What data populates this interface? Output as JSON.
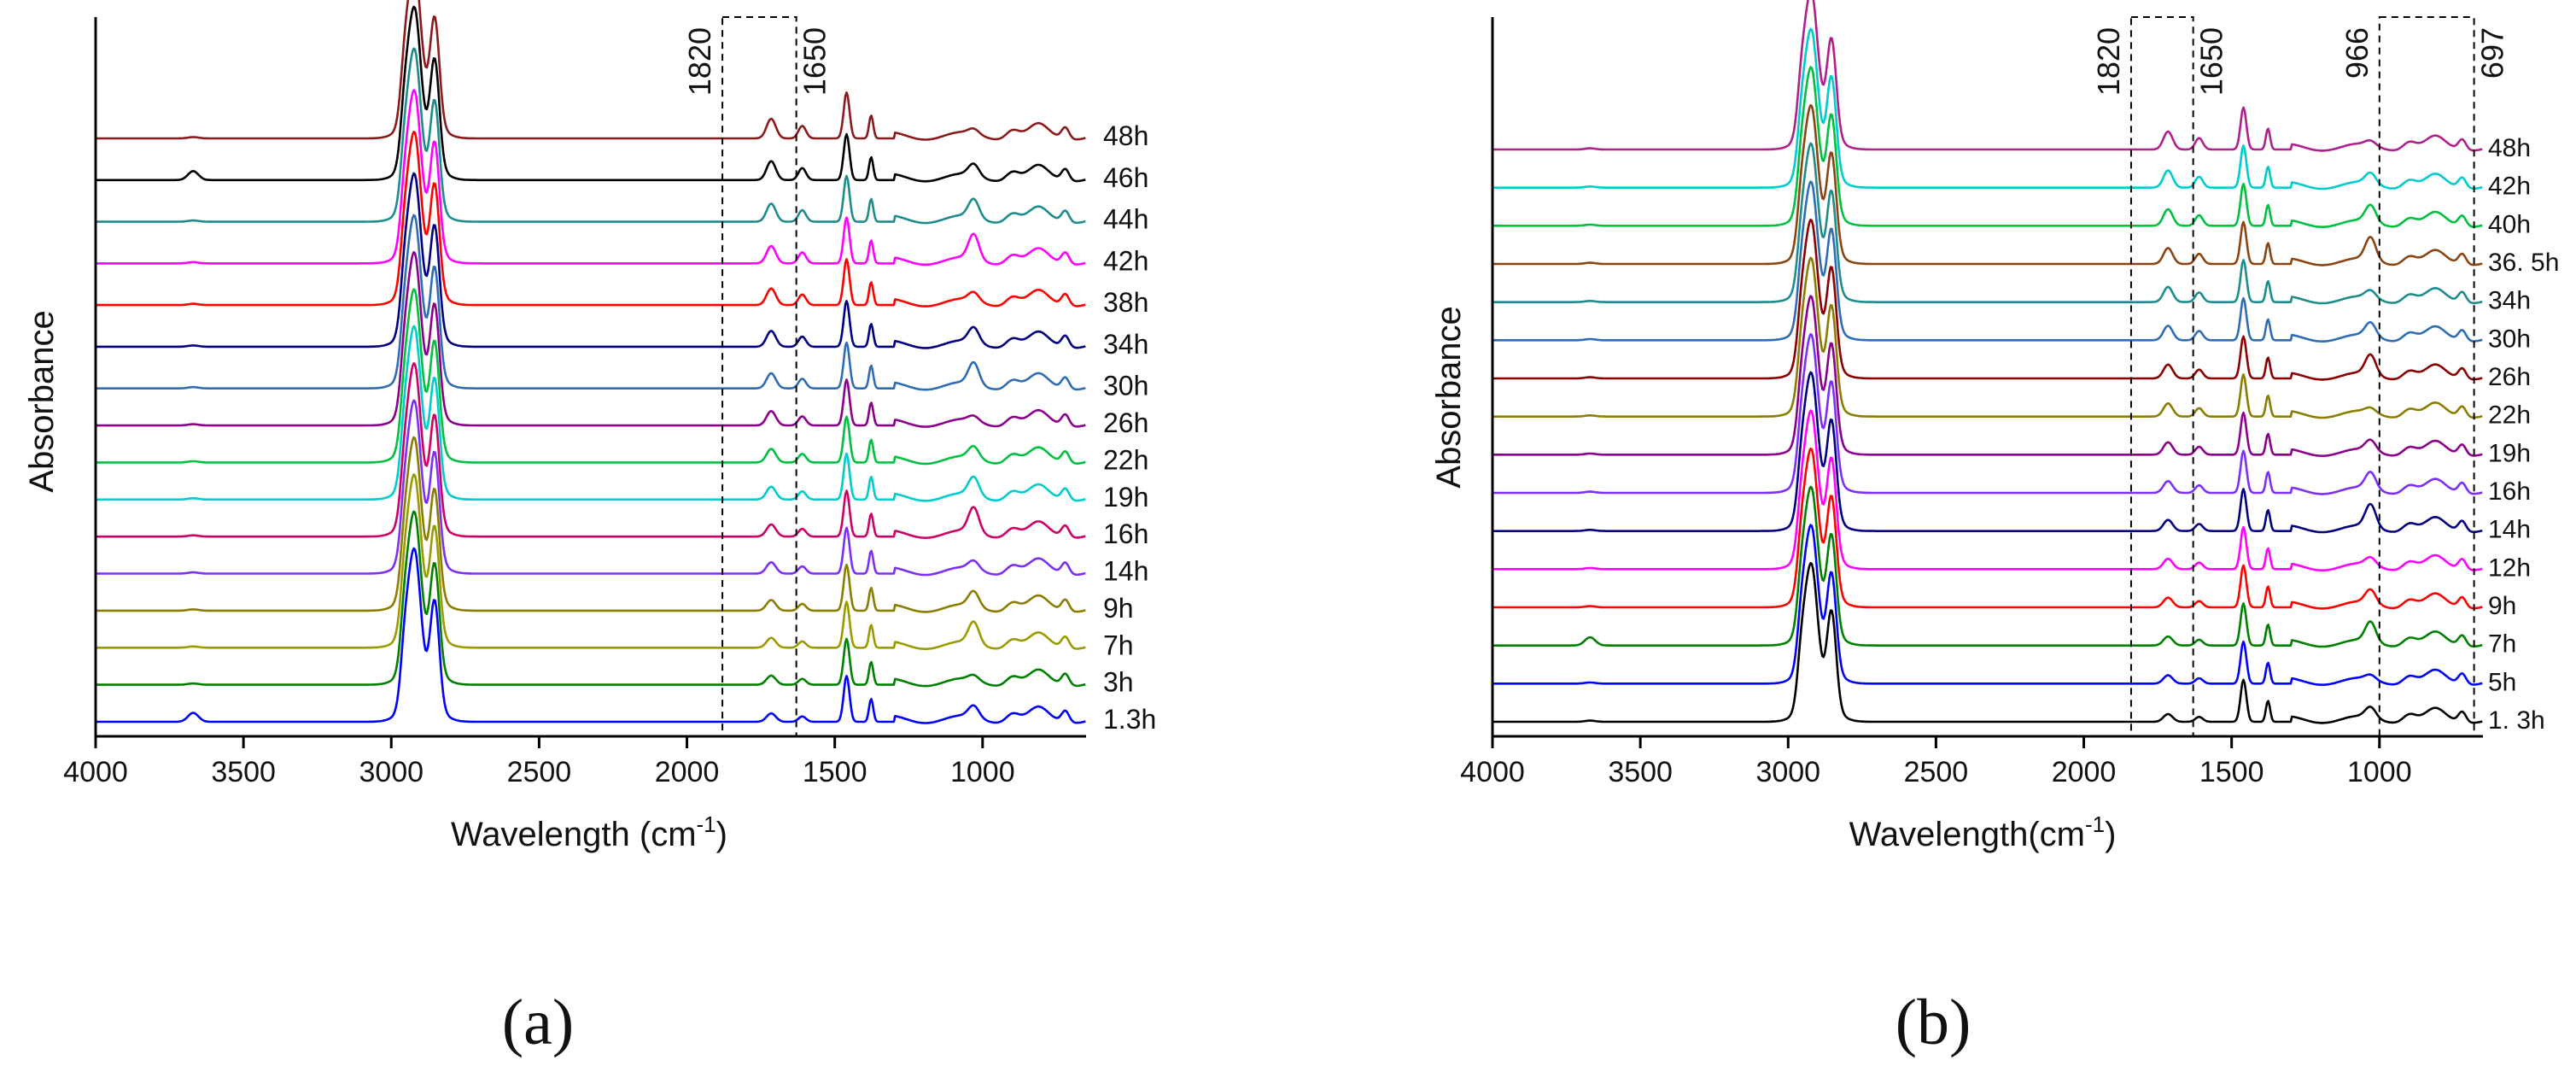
{
  "figure": {
    "panel_labels": [
      "(a)",
      "(b)"
    ]
  },
  "chart_data": [
    {
      "type": "line",
      "panel": "(a)",
      "title": "",
      "xlabel": "Wavelength (cm",
      "xlabel_sup": "-1",
      "xlabel_end": ")",
      "ylabel": "Absorbance",
      "xlim": [
        4000,
        650
      ],
      "x_reversed": true,
      "xticks": [
        4000,
        3500,
        3000,
        2500,
        2000,
        1500,
        1000
      ],
      "grid": false,
      "legend": "right",
      "annotations": [
        {
          "text": "1820",
          "kind": "region",
          "x_from": 1880,
          "x_to": 1630
        },
        {
          "text": "1650",
          "kind": "label",
          "x": 1630
        }
      ],
      "series": [
        {
          "name": "48h",
          "color": "#8B1A1A",
          "offset": 15.5,
          "profile": "s48"
        },
        {
          "name": "46h",
          "color": "#000000",
          "offset": 14.6,
          "profile": "s46"
        },
        {
          "name": "44h",
          "color": "#1E8C8C",
          "offset": 13.7,
          "profile": "s44"
        },
        {
          "name": "42h",
          "color": "#FF00FF",
          "offset": 12.8,
          "profile": "s42"
        },
        {
          "name": "38h",
          "color": "#FF0000",
          "offset": 11.9,
          "profile": "s38"
        },
        {
          "name": "34h",
          "color": "#000080",
          "offset": 11.0,
          "profile": "s34"
        },
        {
          "name": "30h",
          "color": "#2E6DB4",
          "offset": 10.1,
          "profile": "s30"
        },
        {
          "name": "26h",
          "color": "#8B008B",
          "offset": 9.3,
          "profile": "s26"
        },
        {
          "name": "22h",
          "color": "#00C040",
          "offset": 8.5,
          "profile": "s22"
        },
        {
          "name": "19h",
          "color": "#00CCCC",
          "offset": 7.7,
          "profile": "s19"
        },
        {
          "name": "16h",
          "color": "#CC0066",
          "offset": 6.9,
          "profile": "s16"
        },
        {
          "name": "14h",
          "color": "#7B2FF7",
          "offset": 6.1,
          "profile": "s14"
        },
        {
          "name": "9h",
          "color": "#8B7D00",
          "offset": 5.3,
          "profile": "s9"
        },
        {
          "name": "7h",
          "color": "#9B9B00",
          "offset": 4.5,
          "profile": "s7"
        },
        {
          "name": "3h",
          "color": "#008000",
          "offset": 3.7,
          "profile": "s3"
        },
        {
          "name": "1.3h",
          "color": "#0000FF",
          "offset": 2.9,
          "profile": "s1"
        }
      ]
    },
    {
      "type": "line",
      "panel": "(b)",
      "title": "",
      "xlabel": "Wavelength(cm",
      "xlabel_sup": "-1",
      "xlabel_end": ")",
      "ylabel": "Absorbance",
      "xlim": [
        4000,
        650
      ],
      "x_reversed": true,
      "xticks": [
        4000,
        3500,
        3000,
        2500,
        2000,
        1500,
        1000
      ],
      "grid": false,
      "legend": "right",
      "annotations": [
        {
          "text": "1820",
          "kind": "region",
          "x_from": 1840,
          "x_to": 1630
        },
        {
          "text": "1650",
          "kind": "label",
          "x": 1630
        },
        {
          "text": "966",
          "kind": "region",
          "x_from": 1000,
          "x_to": 680
        },
        {
          "text": "697",
          "kind": "label",
          "x": 680
        }
      ],
      "series": [
        {
          "name": "48h",
          "color": "#B0208C",
          "offset": 16.4,
          "profile": "b48"
        },
        {
          "name": "42h",
          "color": "#00CCCC",
          "offset": 15.5,
          "profile": "b42"
        },
        {
          "name": "40h",
          "color": "#00C040",
          "offset": 14.6,
          "profile": "b40"
        },
        {
          "name": "36. 5h",
          "color": "#8B4513",
          "offset": 13.7,
          "profile": "b36"
        },
        {
          "name": "34h",
          "color": "#1E8C8C",
          "offset": 12.8,
          "profile": "b34"
        },
        {
          "name": "30h",
          "color": "#2E6DB4",
          "offset": 11.9,
          "profile": "b30"
        },
        {
          "name": "26h",
          "color": "#8B0000",
          "offset": 11.0,
          "profile": "b26"
        },
        {
          "name": "22h",
          "color": "#8B7D00",
          "offset": 10.1,
          "profile": "b22"
        },
        {
          "name": "19h",
          "color": "#8B008B",
          "offset": 9.2,
          "profile": "b19"
        },
        {
          "name": "16h",
          "color": "#7B2FF7",
          "offset": 8.3,
          "profile": "b16"
        },
        {
          "name": "14h",
          "color": "#000080",
          "offset": 7.4,
          "profile": "b14"
        },
        {
          "name": "12h",
          "color": "#FF00FF",
          "offset": 6.5,
          "profile": "b12"
        },
        {
          "name": "9h",
          "color": "#FF0000",
          "offset": 5.6,
          "profile": "b9"
        },
        {
          "name": "7h",
          "color": "#008000",
          "offset": 4.7,
          "profile": "b7"
        },
        {
          "name": "5h",
          "color": "#0000FF",
          "offset": 3.8,
          "profile": "b5"
        },
        {
          "name": "1. 3h",
          "color": "#000000",
          "offset": 2.9,
          "profile": "b1"
        }
      ]
    }
  ]
}
